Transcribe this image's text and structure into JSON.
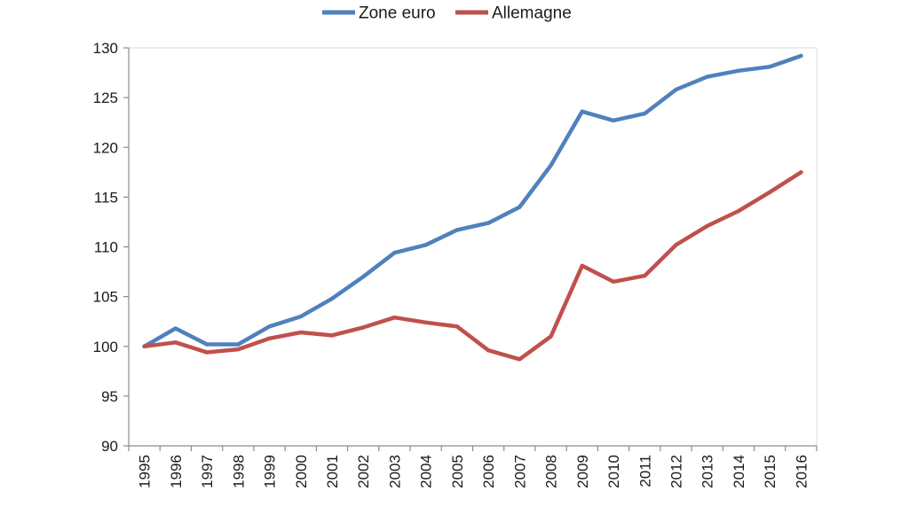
{
  "chart_data": {
    "type": "line",
    "x": [
      "1995",
      "1996",
      "1997",
      "1998",
      "1999",
      "2000",
      "2001",
      "2002",
      "2003",
      "2004",
      "2005",
      "2006",
      "2007",
      "2008",
      "2009",
      "2010",
      "2011",
      "2012",
      "2013",
      "2014",
      "2015",
      "2016"
    ],
    "series": [
      {
        "name": "Zone euro",
        "color": "#4F81BD",
        "values": [
          100,
          101.8,
          100.2,
          100.2,
          102,
          103,
          104.8,
          107,
          109.4,
          110.2,
          111.7,
          112.4,
          114,
          118.2,
          123.6,
          122.7,
          123.4,
          125.8,
          127.1,
          127.7,
          128.1,
          129.2
        ]
      },
      {
        "name": "Allemagne",
        "color": "#C0504D",
        "values": [
          100,
          100.4,
          99.4,
          99.7,
          100.8,
          101.4,
          101.1,
          101.9,
          102.9,
          102.4,
          102,
          99.6,
          98.7,
          101,
          108.1,
          106.5,
          107.1,
          110.2,
          112.1,
          113.6,
          115.5,
          117.5
        ]
      }
    ],
    "ylim": [
      90,
      130
    ],
    "yticks": [
      90,
      95,
      100,
      105,
      110,
      115,
      120,
      125,
      130
    ],
    "grid": false,
    "legend_position": "top"
  }
}
